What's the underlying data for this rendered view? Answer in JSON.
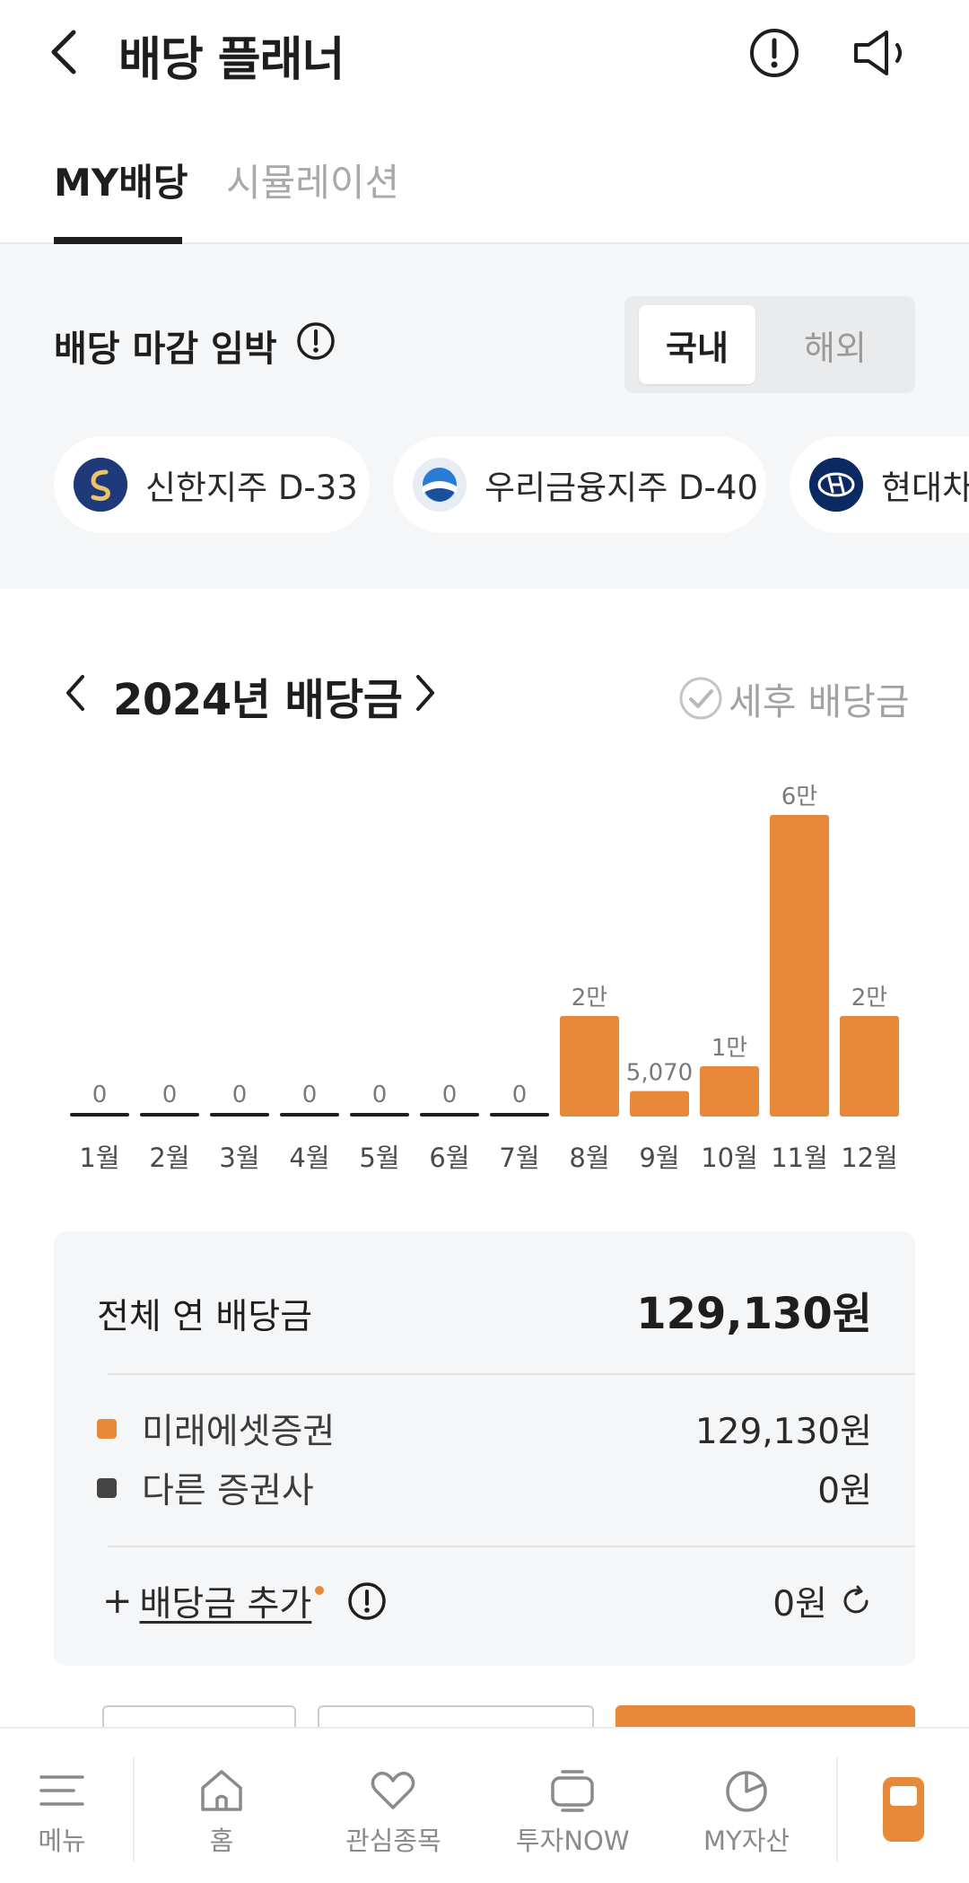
{
  "header": {
    "title": "배당 플래너",
    "back_icon": "chevron-left-icon",
    "info_icon": "exclamation-circle-icon",
    "speaker_icon": "speaker-icon"
  },
  "tabs": [
    {
      "label": "MY배당",
      "active": true
    },
    {
      "label": "시뮬레이션",
      "active": false
    }
  ],
  "deadline": {
    "title": "배당 마감 임박",
    "segment": {
      "domestic": "국내",
      "overseas": "해외",
      "selected": "국내"
    },
    "chips": [
      {
        "label": "신한지주 D-33",
        "logo_color": "#1e3a7a"
      },
      {
        "label": "우리금융지주 D-40",
        "logo_color": "#2a7bd4"
      },
      {
        "label": "현대차",
        "logo_color": "#0b2a64"
      }
    ]
  },
  "year_nav": {
    "title": "2024년 배당금",
    "after_tax_label": "세후 배당금"
  },
  "chart_data": {
    "type": "bar",
    "categories": [
      "1월",
      "2월",
      "3월",
      "4월",
      "5월",
      "6월",
      "7월",
      "8월",
      "9월",
      "10월",
      "11월",
      "12월"
    ],
    "values": [
      0,
      0,
      0,
      0,
      0,
      0,
      0,
      20000,
      5070,
      10000,
      60000,
      20000
    ],
    "data_labels": [
      "0",
      "0",
      "0",
      "0",
      "0",
      "0",
      "0",
      "2만",
      "5,070",
      "1만",
      "6만",
      "2만"
    ],
    "bar_color": "#e8893a",
    "zero_color": "#1e1e1e",
    "ylim": [
      0,
      60000
    ]
  },
  "summary": {
    "total_label": "전체 연 배당금",
    "total_value": "129,130원",
    "rows": [
      {
        "label": "미래에셋증권",
        "value": "129,130원",
        "color": "#e8893a"
      },
      {
        "label": "다른 증권사",
        "value": "0원",
        "color": "#444444"
      }
    ],
    "add_prefix": "+",
    "add_label": "배당금 추가",
    "add_value": "0원"
  },
  "bottom_nav": [
    {
      "label": "메뉴",
      "icon": "menu-icon"
    },
    {
      "label": "홈",
      "icon": "home-icon"
    },
    {
      "label": "관심종목",
      "icon": "heart-icon"
    },
    {
      "label": "투자NOW",
      "icon": "tv-icon"
    },
    {
      "label": "MY자산",
      "icon": "pie-chart-icon"
    }
  ],
  "colors": {
    "accent": "#e8893a",
    "section_bg": "#f5f6f8"
  }
}
